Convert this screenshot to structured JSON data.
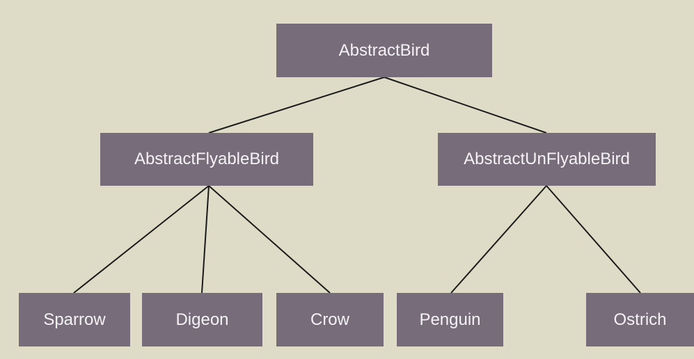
{
  "diagram": {
    "nodes": {
      "root": "AbstractBird",
      "flyable": "AbstractFlyableBird",
      "unflyable": "AbstractUnFlyableBird",
      "sparrow": "Sparrow",
      "digeon": "Digeon",
      "crow": "Crow",
      "penguin": "Penguin",
      "ostrich": "Ostrich"
    },
    "edges": [
      [
        "root",
        "flyable"
      ],
      [
        "root",
        "unflyable"
      ],
      [
        "flyable",
        "sparrow"
      ],
      [
        "flyable",
        "digeon"
      ],
      [
        "flyable",
        "crow"
      ],
      [
        "unflyable",
        "penguin"
      ],
      [
        "unflyable",
        "ostrich"
      ]
    ],
    "colors": {
      "background": "#dedbc7",
      "node_fill": "#766c7a",
      "node_text": "#f4f2f5",
      "edge": "#1a1a1a"
    }
  }
}
